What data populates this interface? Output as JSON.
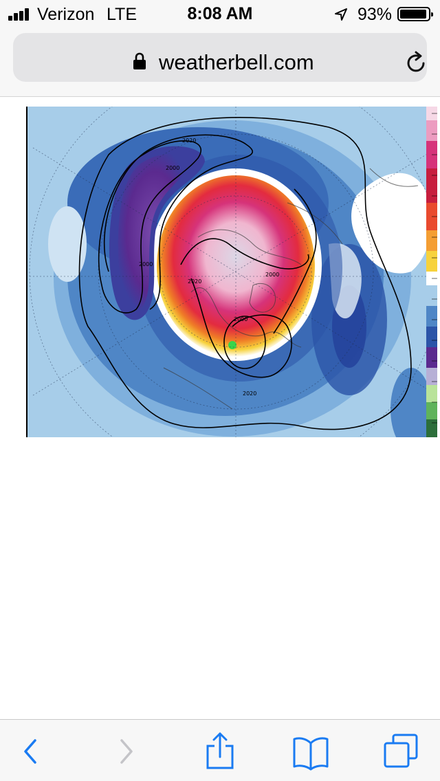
{
  "status_bar": {
    "carrier": "Verizon",
    "network": "LTE",
    "time": "8:08 AM",
    "battery_percent": "93%",
    "battery_level": 0.93,
    "signal_bars": 4
  },
  "url_bar": {
    "url": "weatherbell.com",
    "lock_icon": "lock-icon",
    "reload_icon": "reload-icon"
  },
  "map": {
    "contour_labels": {
      "top": "2020",
      "upper_left": "2000",
      "left": "2000",
      "center_left": "2020",
      "center_right": "2000",
      "center_low": "2000",
      "bottom": "2020"
    },
    "colors": {
      "purple": "#5b2a8f",
      "dark_blue": "#2b54a8",
      "mid_blue": "#4f86c6",
      "light_blue": "#a7cde9",
      "white": "#ffffff",
      "yellow": "#f7d23c",
      "orange": "#ef7d27",
      "red": "#e32b3f",
      "magenta": "#d6337a",
      "pink": "#f0b6cf",
      "center_gray": "#dcd7e6"
    }
  },
  "toolbar": {
    "back_icon": "chevron-left-icon",
    "forward_icon": "chevron-right-icon",
    "share_icon": "share-icon",
    "bookmarks_icon": "book-icon",
    "tabs_icon": "tabs-icon",
    "accent_color": "#1a7bf2",
    "disabled_color": "#c4c4c8"
  }
}
